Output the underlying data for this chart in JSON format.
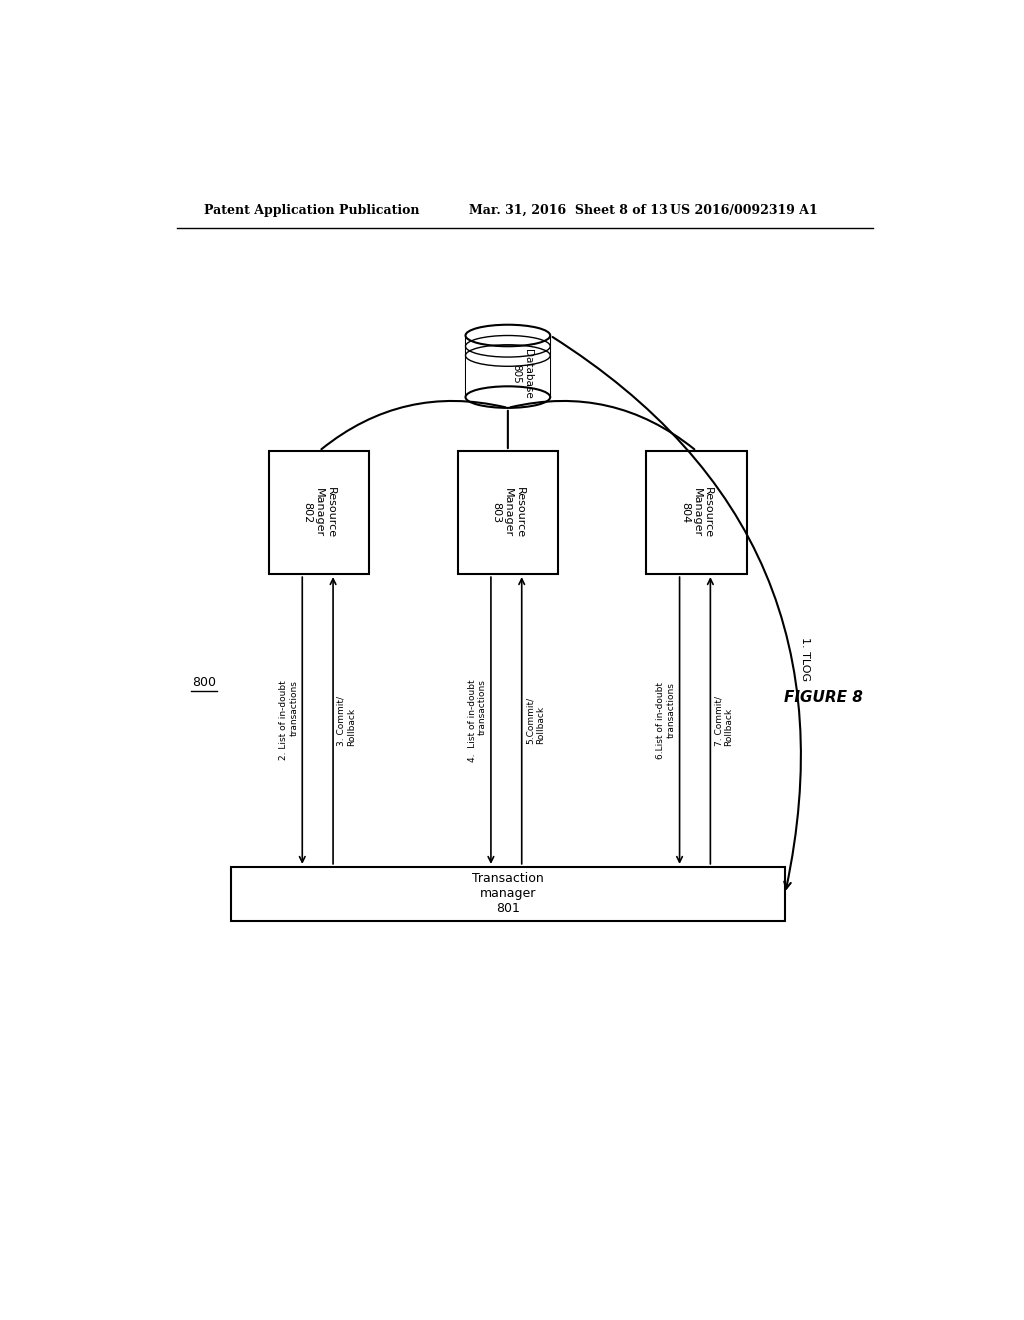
{
  "title_left": "Patent Application Publication",
  "title_mid": "Mar. 31, 2016  Sheet 8 of 13",
  "title_right": "US 2016/0092319 A1",
  "figure_label": "FIGURE 8",
  "system_label": "800",
  "database_label": "Database\n805",
  "rm1_label": "Resource\nManager\n802",
  "rm2_label": "Resource\nManager\n803",
  "rm3_label": "Resource\nManager\n804",
  "tm_label": "Transaction\nmanager\n801",
  "tlog_label": "1. TLOG",
  "arrow_labels": [
    [
      "2. List of in-doubt\ntransactions",
      "3. Commit/\nRollback"
    ],
    [
      "4.  List of in-doubt\ntransactions",
      "5.Commit/\nRollback"
    ],
    [
      "6.List of in-doubt\ntransactions",
      "7. Commit/\nRollback"
    ]
  ],
  "bg_color": "#ffffff",
  "line_color": "#000000",
  "font_color": "#000000"
}
